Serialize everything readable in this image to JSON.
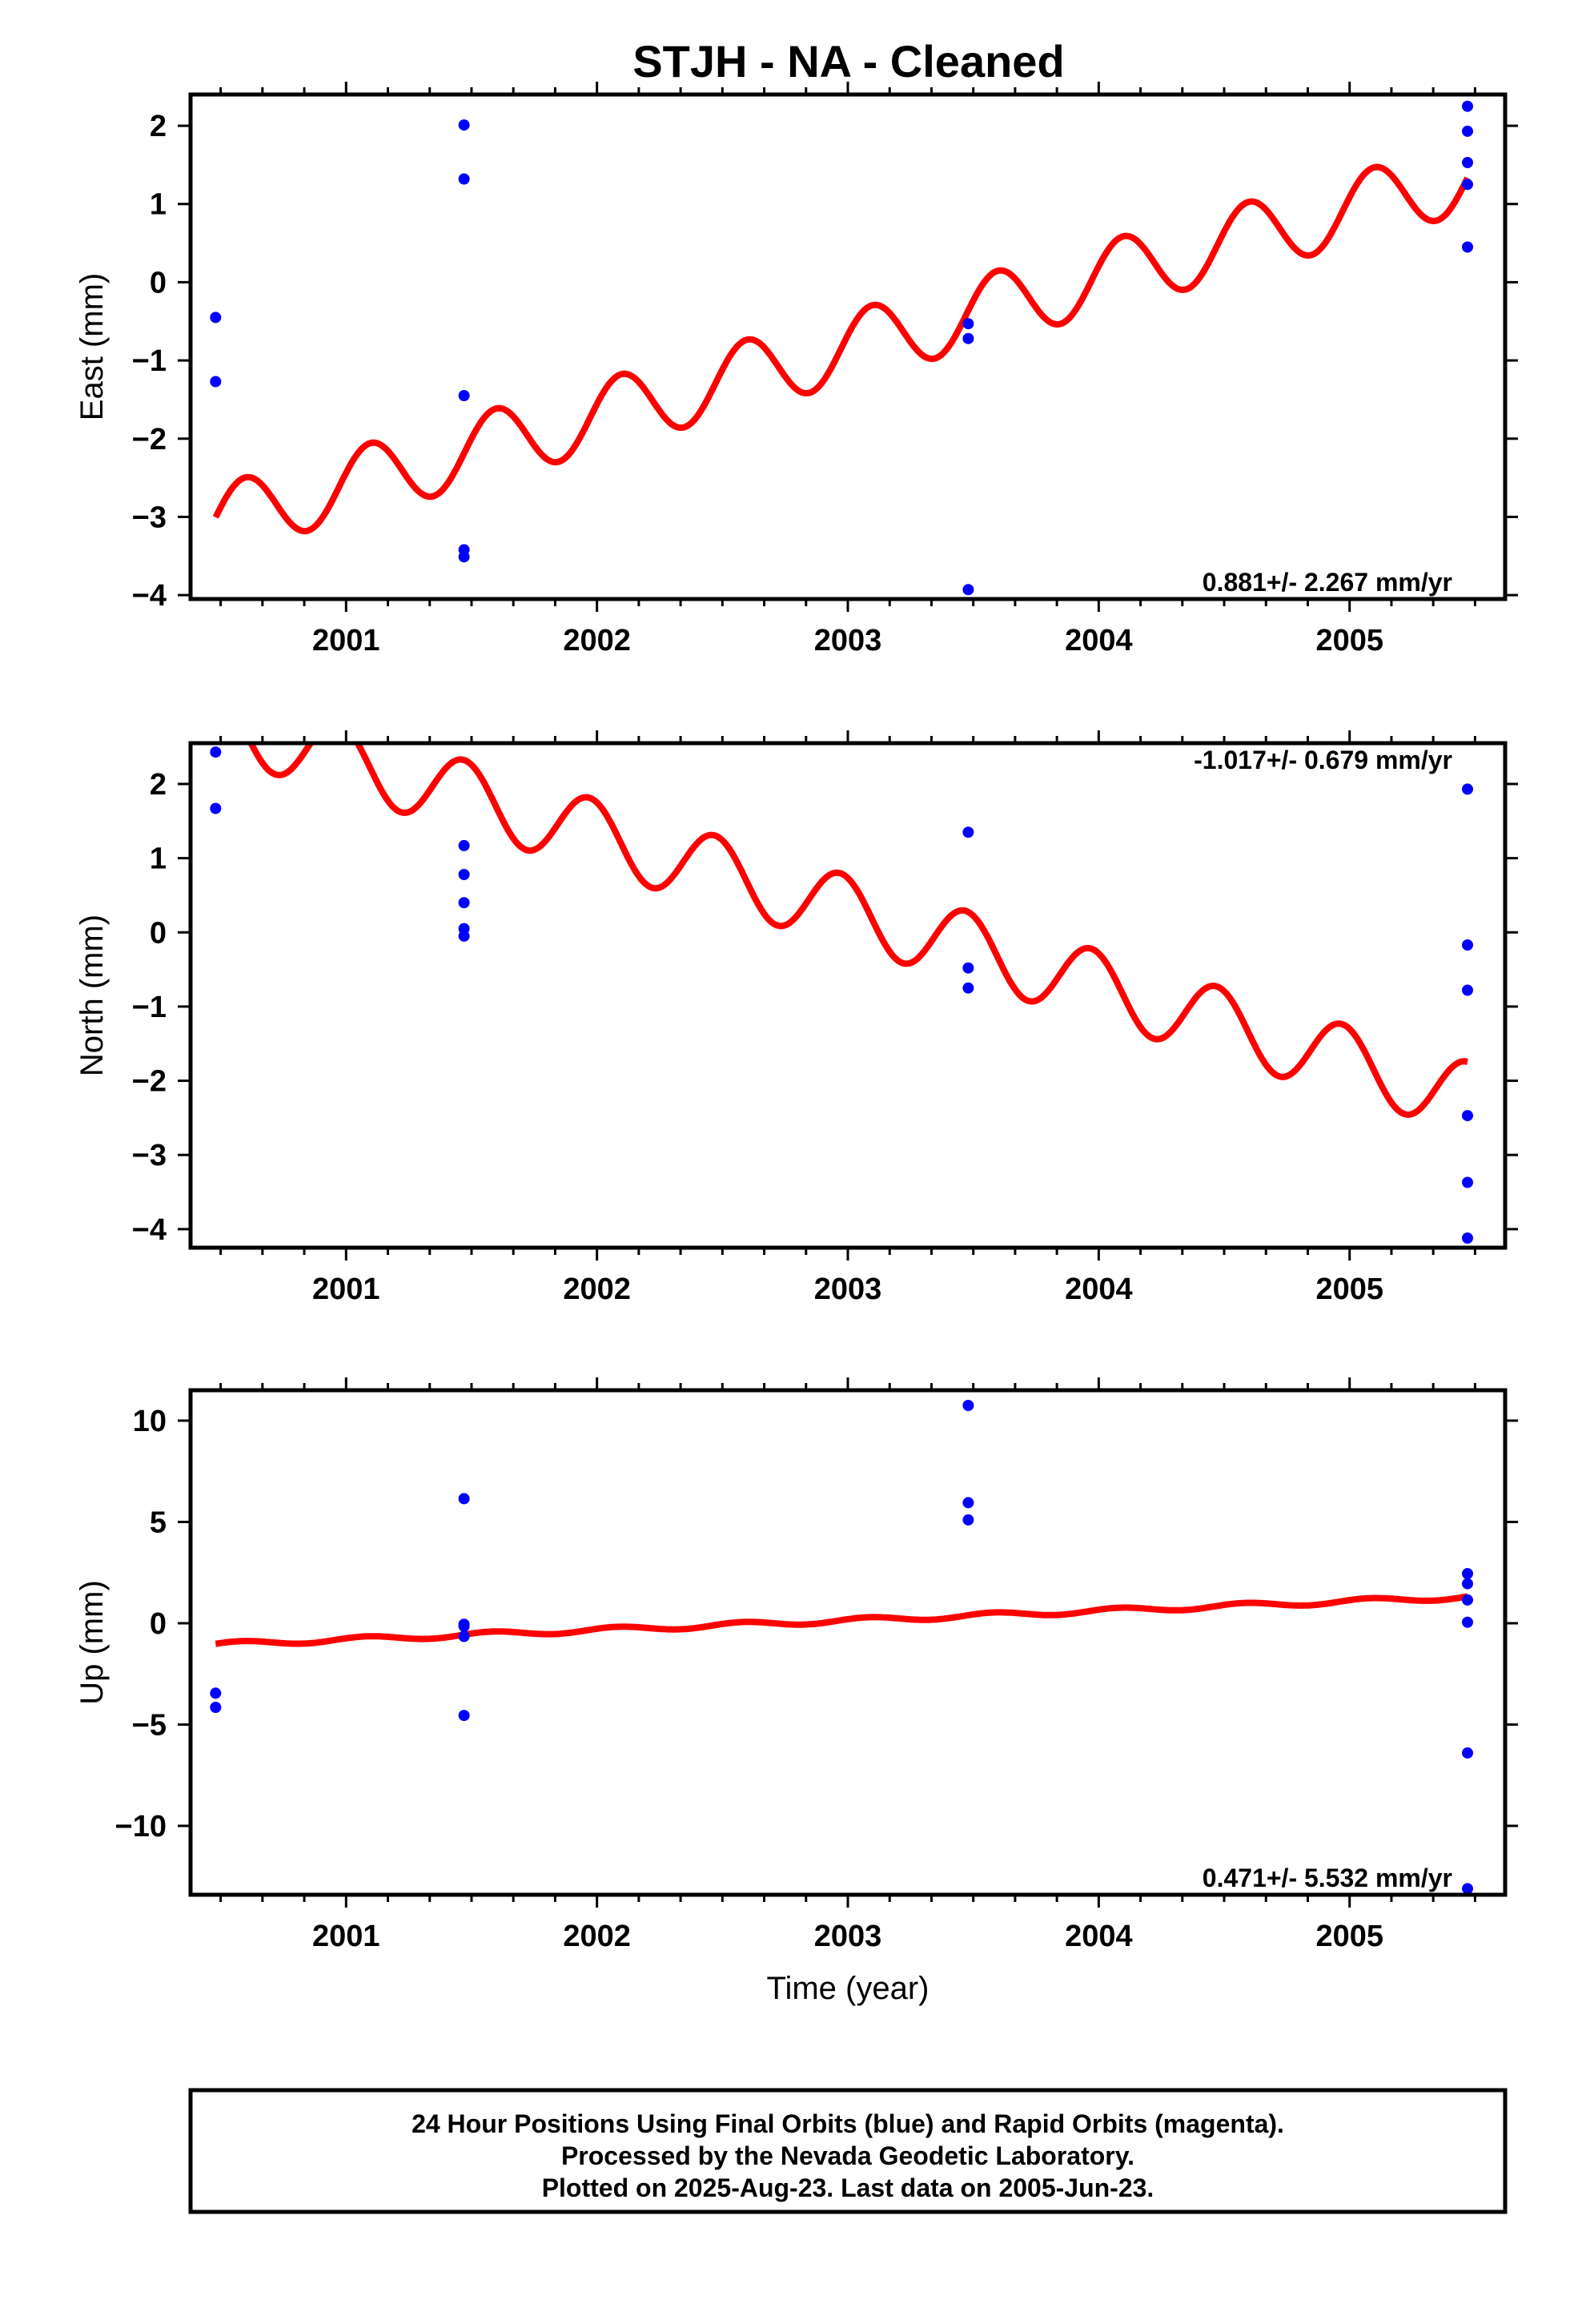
{
  "title": "STJH  - NA - Cleaned",
  "colors": {
    "model": "#ff0000",
    "final_orbits": "#0000ff",
    "frame": "#000000"
  },
  "chart_data": [
    {
      "type": "scatter",
      "ylabel": "East (mm)",
      "xlabel": "",
      "xlim": [
        2000.38,
        2005.62
      ],
      "ylim": [
        -4.05,
        2.4
      ],
      "xticks": [
        2001,
        2002,
        2003,
        2004,
        2005
      ],
      "yticks": [
        -4,
        -3,
        -2,
        -1,
        0,
        1,
        2
      ],
      "rate_label": "0.881+/- 2.267 mm/yr",
      "rate_position": "bottom-right",
      "model": {
        "start": 2000.48,
        "end": 2005.47,
        "offset": -3.05,
        "slope": 0.881,
        "ref": 2000.48,
        "amp": 0.45,
        "phase": 0.1
      },
      "points": [
        [
          2000.48,
          -0.45
        ],
        [
          2000.48,
          -1.27
        ],
        [
          2001.47,
          2.01
        ],
        [
          2001.47,
          1.32
        ],
        [
          2001.47,
          -1.45
        ],
        [
          2001.47,
          -3.42
        ],
        [
          2001.47,
          -3.51
        ],
        [
          2003.48,
          -0.53
        ],
        [
          2003.48,
          -0.72
        ],
        [
          2003.48,
          -3.93
        ],
        [
          2005.47,
          2.25
        ],
        [
          2005.47,
          1.93
        ],
        [
          2005.47,
          1.53
        ],
        [
          2005.47,
          1.25
        ],
        [
          2005.47,
          0.45
        ]
      ]
    },
    {
      "type": "scatter",
      "ylabel": "North (mm)",
      "xlabel": "",
      "xlim": [
        2000.38,
        2005.62
      ],
      "ylim": [
        -4.25,
        2.55
      ],
      "xticks": [
        2001,
        2002,
        2003,
        2004,
        2005
      ],
      "yticks": [
        -4,
        -3,
        -2,
        -1,
        0,
        1,
        2
      ],
      "rate_label": "-1.017+/- 0.679 mm/yr",
      "rate_position": "top-right",
      "model": {
        "start": 2000.48,
        "end": 2005.47,
        "offset": 2.85,
        "slope": -1.017,
        "ref": 2000.48,
        "amp": 0.48,
        "phase": 1.7
      },
      "points": [
        [
          2000.48,
          2.43
        ],
        [
          2000.48,
          1.67
        ],
        [
          2001.47,
          1.17
        ],
        [
          2001.47,
          0.78
        ],
        [
          2001.47,
          0.4
        ],
        [
          2001.47,
          0.05
        ],
        [
          2001.47,
          -0.05
        ],
        [
          2003.48,
          1.35
        ],
        [
          2003.48,
          -0.48
        ],
        [
          2003.48,
          -0.75
        ],
        [
          2005.47,
          1.93
        ],
        [
          2005.47,
          -0.17
        ],
        [
          2005.47,
          -0.78
        ],
        [
          2005.47,
          -2.47
        ],
        [
          2005.47,
          -3.37
        ],
        [
          2005.47,
          -4.12
        ]
      ]
    },
    {
      "type": "scatter",
      "ylabel": "Up (mm)",
      "xlabel": "Time (year)",
      "xlim": [
        2000.38,
        2005.62
      ],
      "ylim": [
        -13.4,
        11.5
      ],
      "xticks": [
        2001,
        2002,
        2003,
        2004,
        2005
      ],
      "yticks": [
        -10,
        -5,
        0,
        5,
        10
      ],
      "rate_label": "0.471+/- 5.532 mm/yr",
      "rate_position": "bottom-right",
      "model": {
        "start": 2000.48,
        "end": 2005.47,
        "offset": -1.05,
        "slope": 0.471,
        "ref": 2000.48,
        "amp": 0.12,
        "phase": 0.3
      },
      "points": [
        [
          2000.48,
          -3.45
        ],
        [
          2000.48,
          -4.15
        ],
        [
          2001.47,
          6.15
        ],
        [
          2001.47,
          -0.05
        ],
        [
          2001.47,
          -0.15
        ],
        [
          2001.47,
          -0.65
        ],
        [
          2001.47,
          -4.55
        ],
        [
          2003.48,
          10.75
        ],
        [
          2003.48,
          5.95
        ],
        [
          2003.48,
          5.1
        ],
        [
          2005.47,
          2.45
        ],
        [
          2005.47,
          1.95
        ],
        [
          2005.47,
          1.15
        ],
        [
          2005.47,
          0.05
        ],
        [
          2005.47,
          -6.4
        ],
        [
          2005.47,
          -13.1
        ]
      ]
    }
  ],
  "footer": {
    "line1": "24 Hour Positions Using Final Orbits (blue) and Rapid Orbits (magenta).",
    "line2": "Processed by the Nevada Geodetic Laboratory.",
    "line3": "Plotted on 2025-Aug-23. Last data on 2005-Jun-23."
  }
}
